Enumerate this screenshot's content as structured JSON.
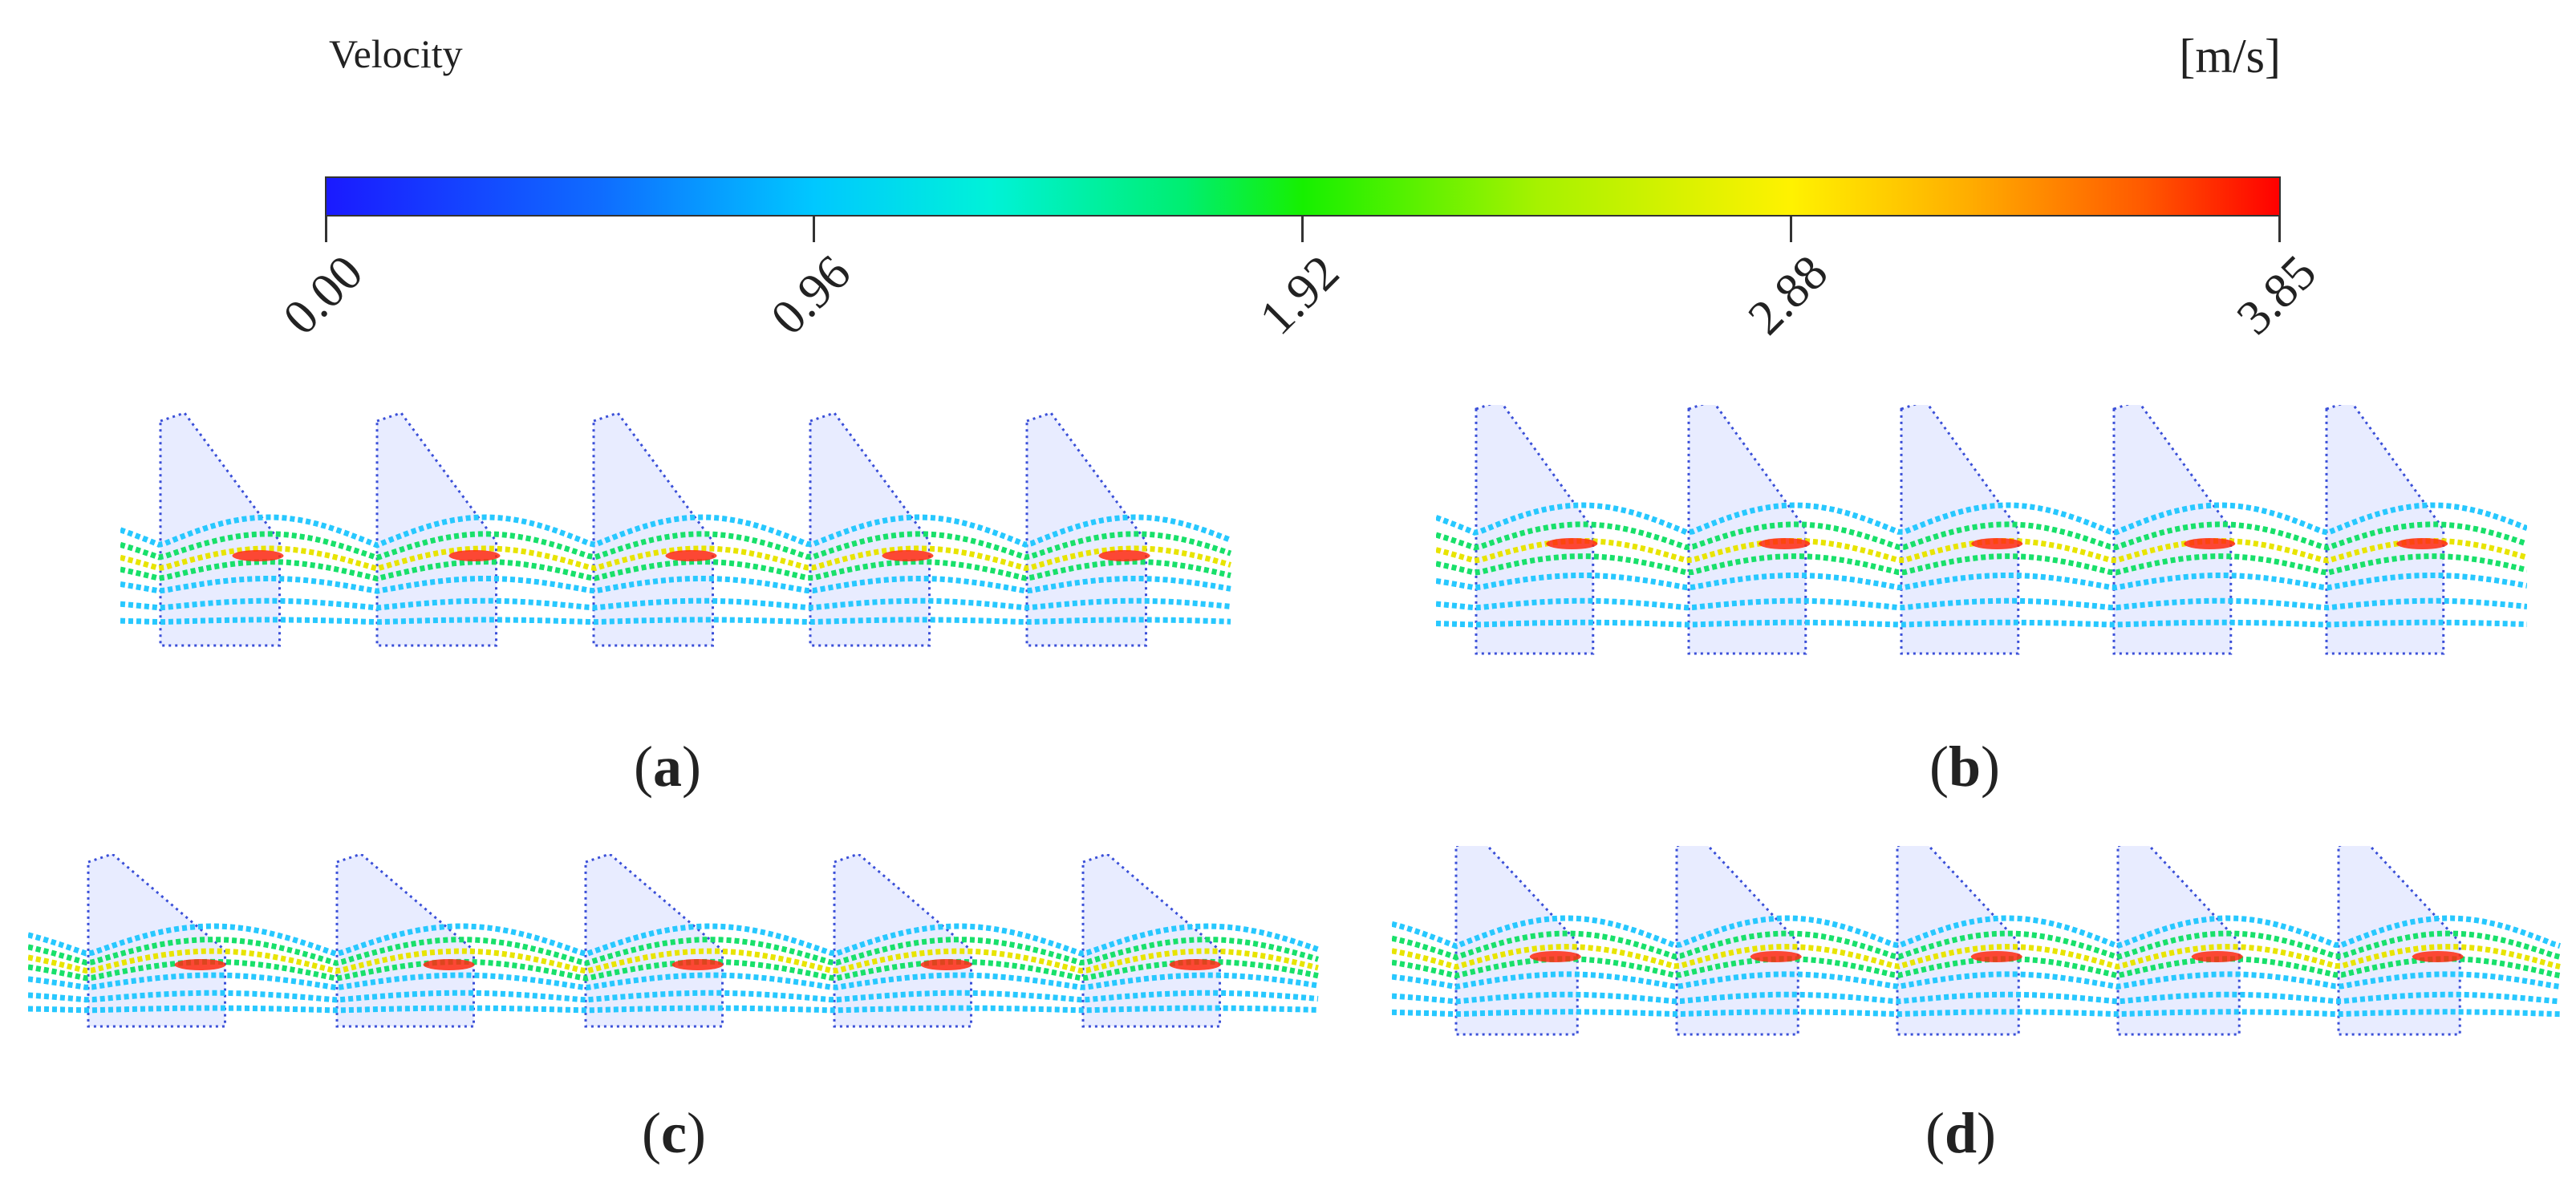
{
  "legend": {
    "title": "Velocity",
    "unit": "[m/s]",
    "ticks": [
      "0.00",
      "0.96",
      "1.92",
      "2.88",
      "3.85"
    ],
    "min": 0.0,
    "max": 3.85,
    "colormap": [
      "#1a1aff",
      "#00c8ff",
      "#00ee70",
      "#16f000",
      "#fff200",
      "#ff5a00",
      "#ff0000"
    ]
  },
  "panels": [
    {
      "letter": "a"
    },
    {
      "letter": "b"
    },
    {
      "letter": "c"
    },
    {
      "letter": "d"
    }
  ],
  "colors": {
    "wall_dots": "#3a4fd8",
    "slow_flow": "#27c8ff",
    "mid_flow": "#18e06a",
    "fast_flow": "#e8e400",
    "peak_flow": "#ff2a10"
  }
}
